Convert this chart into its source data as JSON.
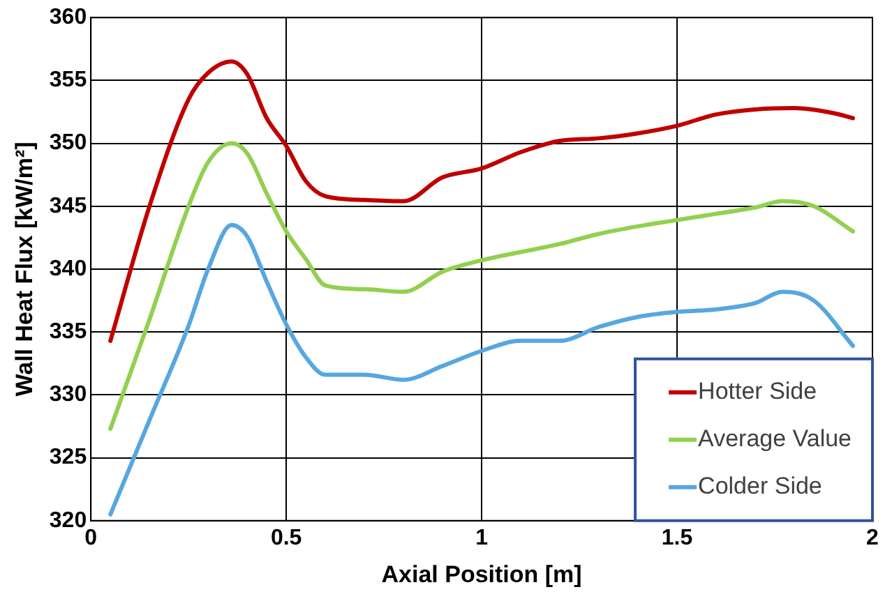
{
  "chart_data": {
    "type": "line",
    "xlabel": "Axial Position [m]",
    "ylabel": "Wall Heat Flux [kW/m²]",
    "xlim": [
      0,
      2
    ],
    "xticks": [
      0,
      0.5,
      1,
      1.5,
      2
    ],
    "ylim": [
      320,
      360
    ],
    "yticks": [
      320,
      325,
      330,
      335,
      340,
      345,
      350,
      355,
      360
    ],
    "grid": true,
    "legend": "bottom right",
    "marker": "none",
    "line_style": "solid",
    "series": [
      {
        "name": "Hotter Side",
        "color": "#c00000",
        "x": [
          0.05,
          0.15,
          0.25,
          0.3,
          0.36,
          0.4,
          0.45,
          0.5,
          0.55,
          0.6,
          0.7,
          0.8,
          0.9,
          1.0,
          1.1,
          1.2,
          1.3,
          1.4,
          1.5,
          1.6,
          1.7,
          1.8,
          1.9,
          1.95
        ],
        "values": [
          334.3,
          345,
          353.5,
          355.6,
          356.5,
          355.5,
          352,
          349.8,
          347,
          345.8,
          345.5,
          345.4,
          347.3,
          348,
          349.3,
          350.2,
          350.4,
          350.8,
          351.4,
          352.3,
          352.7,
          352.8,
          352.4,
          352
        ]
      },
      {
        "name": "Average Value",
        "color": "#92d050",
        "x": [
          0.05,
          0.15,
          0.25,
          0.3,
          0.36,
          0.4,
          0.45,
          0.5,
          0.55,
          0.6,
          0.7,
          0.8,
          0.9,
          1.0,
          1.2,
          1.3,
          1.4,
          1.5,
          1.6,
          1.7,
          1.77,
          1.85,
          1.95
        ],
        "values": [
          327.3,
          336,
          345,
          348.5,
          350,
          349.2,
          346,
          343,
          340.8,
          338.7,
          338.4,
          338.2,
          339.8,
          340.7,
          342,
          342.8,
          343.4,
          343.9,
          344.4,
          344.9,
          345.4,
          345,
          343
        ]
      },
      {
        "name": "Colder Side",
        "color": "#56a7e0",
        "x": [
          0.05,
          0.15,
          0.25,
          0.3,
          0.36,
          0.4,
          0.45,
          0.5,
          0.55,
          0.6,
          0.7,
          0.8,
          0.9,
          1.0,
          1.1,
          1.2,
          1.3,
          1.4,
          1.5,
          1.6,
          1.7,
          1.77,
          1.85,
          1.95
        ],
        "values": [
          320.5,
          328,
          335.5,
          340,
          343.5,
          342.6,
          339,
          335.6,
          333,
          331.6,
          331.6,
          331.2,
          332.3,
          333.5,
          334.3,
          334.3,
          335.4,
          336.2,
          336.6,
          336.8,
          337.3,
          338.2,
          337.5,
          333.9
        ]
      }
    ]
  }
}
